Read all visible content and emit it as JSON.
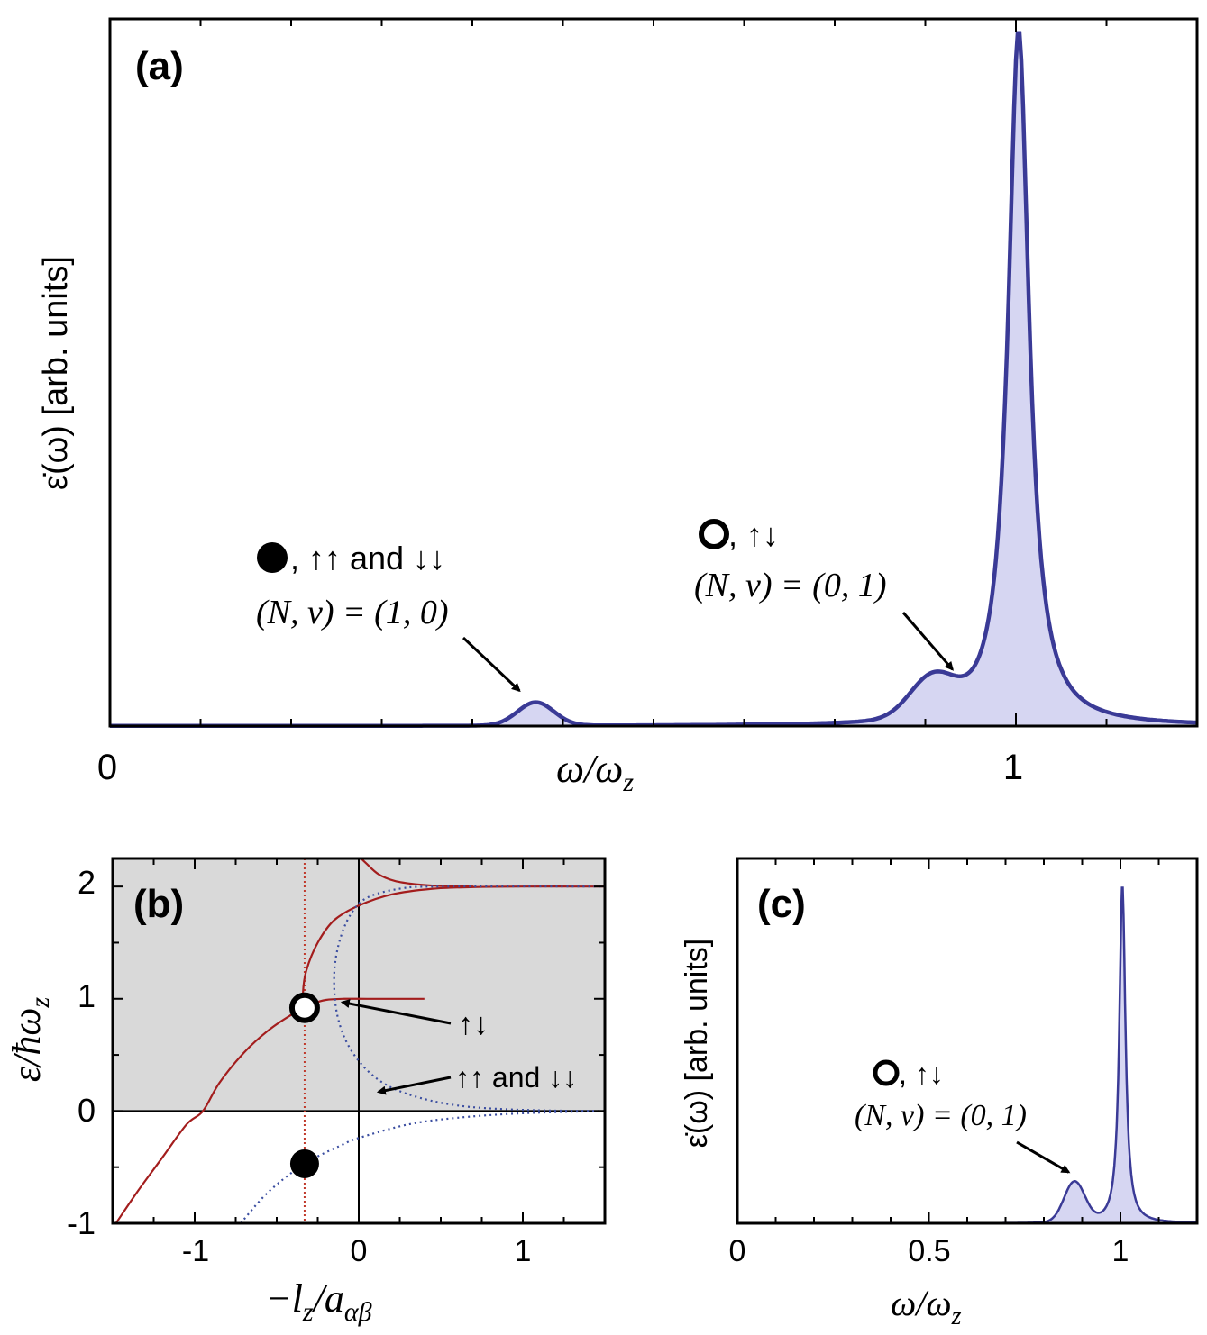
{
  "chart_data": [
    {
      "panel": "a",
      "type": "area",
      "label": "(a)",
      "xlabel": "ω/ω",
      "xlabel_sub": "z",
      "ylabel": "ε̇(ω)  [arb. units]",
      "xlim": [
        0,
        1.2
      ],
      "ylim": [
        0,
        1
      ],
      "xticks": [
        {
          "v": 0,
          "t": "0"
        },
        {
          "v": 1,
          "t": "1"
        }
      ],
      "minor_step": 0.1,
      "peaks": [
        {
          "center": 0.47,
          "height": 0.033,
          "width": 0.02,
          "shape": "gauss"
        },
        {
          "center": 0.908,
          "height": 0.055,
          "width": 0.025,
          "shape": "gauss"
        },
        {
          "center": 1.003,
          "height": 0.985,
          "width": 0.014,
          "shape": "lorentz"
        }
      ],
      "annotations": [
        {
          "marker": "filled-circle",
          "line1": ", ↑↑ and ↓↓",
          "line2": "(N, ν) = (1, 0)",
          "arrow_to": [
            0.452,
            0.05
          ]
        },
        {
          "marker": "open-circle",
          "line1": ", ↑↓",
          "line2": "(N, ν) = (0, 1)",
          "arrow_to": [
            0.93,
            0.08
          ]
        }
      ]
    },
    {
      "panel": "b",
      "type": "line",
      "label": "(b)",
      "xlabel": "−l",
      "xlabel_sub": "z",
      "xlabel_tail": "/a",
      "xlabel_tail_sub": "αβ",
      "ylabel": "ε/ħω",
      "ylabel_sub": "z",
      "xlim": [
        -1.5,
        1.5
      ],
      "ylim": [
        -1,
        2.25
      ],
      "xticks": [
        {
          "v": -1,
          "t": "-1"
        },
        {
          "v": 0,
          "t": "0"
        },
        {
          "v": 1,
          "t": "1"
        }
      ],
      "yticks": [
        {
          "v": -1,
          "t": "-1"
        },
        {
          "v": 0,
          "t": "0"
        },
        {
          "v": 1,
          "t": "1"
        },
        {
          "v": 2,
          "t": "2"
        }
      ],
      "shaded_region": {
        "from_y": 0,
        "to_y": 2.25,
        "color": "#d9d9d9"
      },
      "vertical_line": {
        "x": -0.33,
        "style": "dotted",
        "color": "#c0392b"
      },
      "series": [
        {
          "name": "↑↓ branch 1",
          "style": "solid",
          "color": "#a31d1d",
          "points": [
            [
              -1.48,
              -1.0
            ],
            [
              -1.35,
              -0.72
            ],
            [
              -1.2,
              -0.42
            ],
            [
              -1.05,
              -0.12
            ],
            [
              -0.95,
              0.0
            ],
            [
              -0.85,
              0.25
            ],
            [
              -0.7,
              0.52
            ],
            [
              -0.55,
              0.72
            ],
            [
              -0.42,
              0.85
            ],
            [
              -0.33,
              0.92
            ]
          ]
        },
        {
          "name": "↑↓ branch 2",
          "style": "solid",
          "color": "#a31d1d",
          "points": [
            [
              0.4,
              1.0
            ],
            [
              0.2,
              1.0
            ],
            [
              0.05,
              1.0
            ],
            [
              -0.1,
              1.0
            ],
            [
              -0.2,
              0.99
            ],
            [
              -0.27,
              0.96
            ],
            [
              -0.31,
              0.92
            ],
            [
              -0.33,
              0.96
            ],
            [
              -0.34,
              1.05
            ],
            [
              -0.32,
              1.25
            ],
            [
              -0.25,
              1.5
            ],
            [
              -0.15,
              1.7
            ],
            [
              0.0,
              1.83
            ],
            [
              0.2,
              1.93
            ],
            [
              0.45,
              1.98
            ],
            [
              0.7,
              1.995
            ],
            [
              1.0,
              2.0
            ],
            [
              1.5,
              2.0
            ]
          ]
        },
        {
          "name": "↑↓ branch 3",
          "style": "solid",
          "color": "#a31d1d",
          "points": [
            [
              0.0,
              2.27
            ],
            [
              0.05,
              2.2
            ],
            [
              0.12,
              2.11
            ],
            [
              0.22,
              2.05
            ],
            [
              0.35,
              2.02
            ],
            [
              0.5,
              2.005
            ],
            [
              0.7,
              2.0
            ]
          ]
        },
        {
          "name": "↑↑ and ↓↓ lower",
          "style": "dotted",
          "color": "#3a4da0",
          "points": [
            [
              -0.72,
              -1.0
            ],
            [
              -0.55,
              -0.72
            ],
            [
              -0.33,
              -0.47
            ],
            [
              -0.1,
              -0.3
            ],
            [
              0.0,
              -0.24
            ],
            [
              0.3,
              -0.12
            ],
            [
              0.6,
              -0.06
            ],
            [
              1.0,
              -0.02
            ],
            [
              1.5,
              0.0
            ]
          ]
        },
        {
          "name": "↑↑ and ↓↓ upper",
          "style": "dotted",
          "color": "#3a4da0",
          "points": [
            [
              1.5,
              0.0
            ],
            [
              1.0,
              0.01
            ],
            [
              0.6,
              0.05
            ],
            [
              0.3,
              0.15
            ],
            [
              0.1,
              0.3
            ],
            [
              -0.05,
              0.55
            ],
            [
              -0.13,
              0.85
            ],
            [
              -0.15,
              1.2
            ],
            [
              -0.12,
              1.5
            ],
            [
              -0.05,
              1.75
            ],
            [
              0.05,
              1.9
            ],
            [
              0.25,
              1.98
            ],
            [
              0.5,
              2.0
            ],
            [
              1.5,
              2.0
            ]
          ]
        }
      ],
      "markers": [
        {
          "name": "open-circle",
          "x": -0.33,
          "y": 0.92
        },
        {
          "name": "filled-circle",
          "x": -0.33,
          "y": -0.47
        }
      ],
      "annotations": [
        {
          "text": "↑↓",
          "arrow_to": [
            -0.1,
            0.97
          ]
        },
        {
          "text": "↑↑ and ↓↓",
          "arrow_to": [
            0.12,
            0.17
          ]
        }
      ]
    },
    {
      "panel": "c",
      "type": "area",
      "label": "(c)",
      "xlabel": "ω/ω",
      "xlabel_sub": "z",
      "ylabel": "ε̇(ω)  [arb. units]",
      "xlim": [
        0,
        1.2
      ],
      "ylim": [
        0,
        1
      ],
      "xticks": [
        {
          "v": 0,
          "t": "0"
        },
        {
          "v": 0.5,
          "t": "0.5"
        },
        {
          "v": 1,
          "t": "1"
        }
      ],
      "minor_step": 0.1,
      "peaks": [
        {
          "center": 0.88,
          "height": 0.11,
          "width": 0.027,
          "shape": "gauss"
        },
        {
          "center": 1.005,
          "height": 0.93,
          "width": 0.0095,
          "shape": "lorentz"
        }
      ],
      "annotations": [
        {
          "marker": "open-circle",
          "line1": ", ↑↓",
          "line2": "(N, ν) = (0, 1)",
          "arrow_to": [
            0.865,
            0.14
          ]
        }
      ]
    }
  ]
}
